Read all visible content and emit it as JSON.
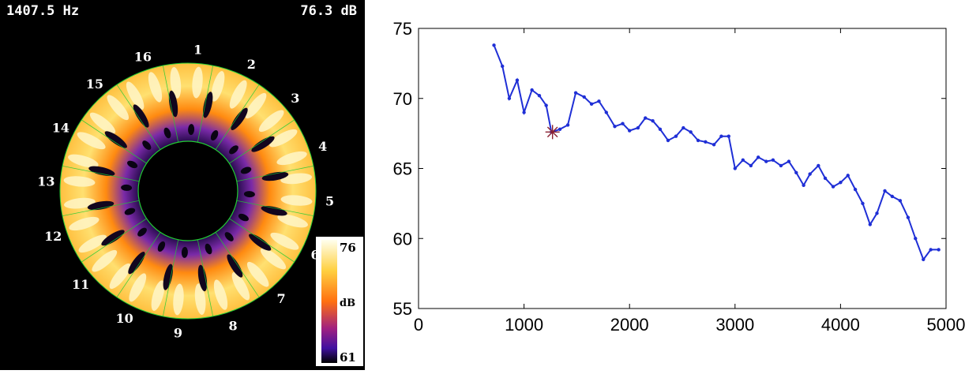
{
  "left_panel": {
    "frequency_label": "1407.5 Hz",
    "level_label": "76.3 dB",
    "sector_labels": [
      "1",
      "2",
      "3",
      "4",
      "5",
      "6",
      "7",
      "8",
      "9",
      "10",
      "11",
      "12",
      "13",
      "14",
      "15",
      "16"
    ],
    "colorbar": {
      "max_label": "76",
      "unit_label": "dB",
      "min_label": "61"
    },
    "colors": {
      "background": "#000000",
      "grid": "#22cc33",
      "high": "#ffffee",
      "mid": "#ff8800",
      "low": "#6a1aa6"
    }
  },
  "chart_data": {
    "type": "line",
    "title": "",
    "xlabel": "",
    "ylabel": "",
    "xlim": [
      0,
      5000
    ],
    "ylim": [
      55,
      75
    ],
    "xticks": [
      0,
      1000,
      2000,
      3000,
      4000,
      5000
    ],
    "yticks": [
      55,
      60,
      65,
      70,
      75
    ],
    "grid": false,
    "series": [
      {
        "color": "#1f2fd6",
        "marker": "dot",
        "x": [
          715,
          795,
          860,
          935,
          1000,
          1075,
          1145,
          1210,
          1260,
          1340,
          1415,
          1490,
          1570,
          1640,
          1710,
          1780,
          1860,
          1935,
          2000,
          2080,
          2150,
          2220,
          2290,
          2365,
          2440,
          2510,
          2580,
          2650,
          2720,
          2800,
          2870,
          2940,
          3000,
          3075,
          3150,
          3220,
          3295,
          3360,
          3435,
          3510,
          3580,
          3650,
          3710,
          3790,
          3855,
          3930,
          4000,
          4070,
          4140,
          4210,
          4280,
          4345,
          4420,
          4490,
          4565,
          4640,
          4710,
          4785,
          4855,
          4930
        ],
        "y": [
          73.8,
          72.3,
          70.0,
          71.3,
          69.0,
          70.6,
          70.2,
          69.5,
          67.6,
          67.8,
          68.1,
          70.4,
          70.1,
          69.6,
          69.8,
          69.0,
          68.0,
          68.2,
          67.7,
          67.9,
          68.6,
          68.4,
          67.8,
          67.0,
          67.3,
          67.9,
          67.6,
          67.0,
          66.9,
          66.7,
          67.3,
          67.3,
          65.0,
          65.6,
          65.2,
          65.8,
          65.5,
          65.6,
          65.2,
          65.5,
          64.7,
          63.8,
          64.6,
          65.2,
          64.3,
          63.7,
          64.0,
          64.5,
          63.5,
          62.5,
          61.0,
          61.8,
          63.4,
          63.0,
          62.7,
          61.5,
          60.0,
          58.5,
          59.2,
          59.2
        ]
      }
    ],
    "highlight_point": {
      "x": 1270,
      "y": 67.6,
      "marker": "asterisk",
      "color": "#8a2030"
    }
  }
}
